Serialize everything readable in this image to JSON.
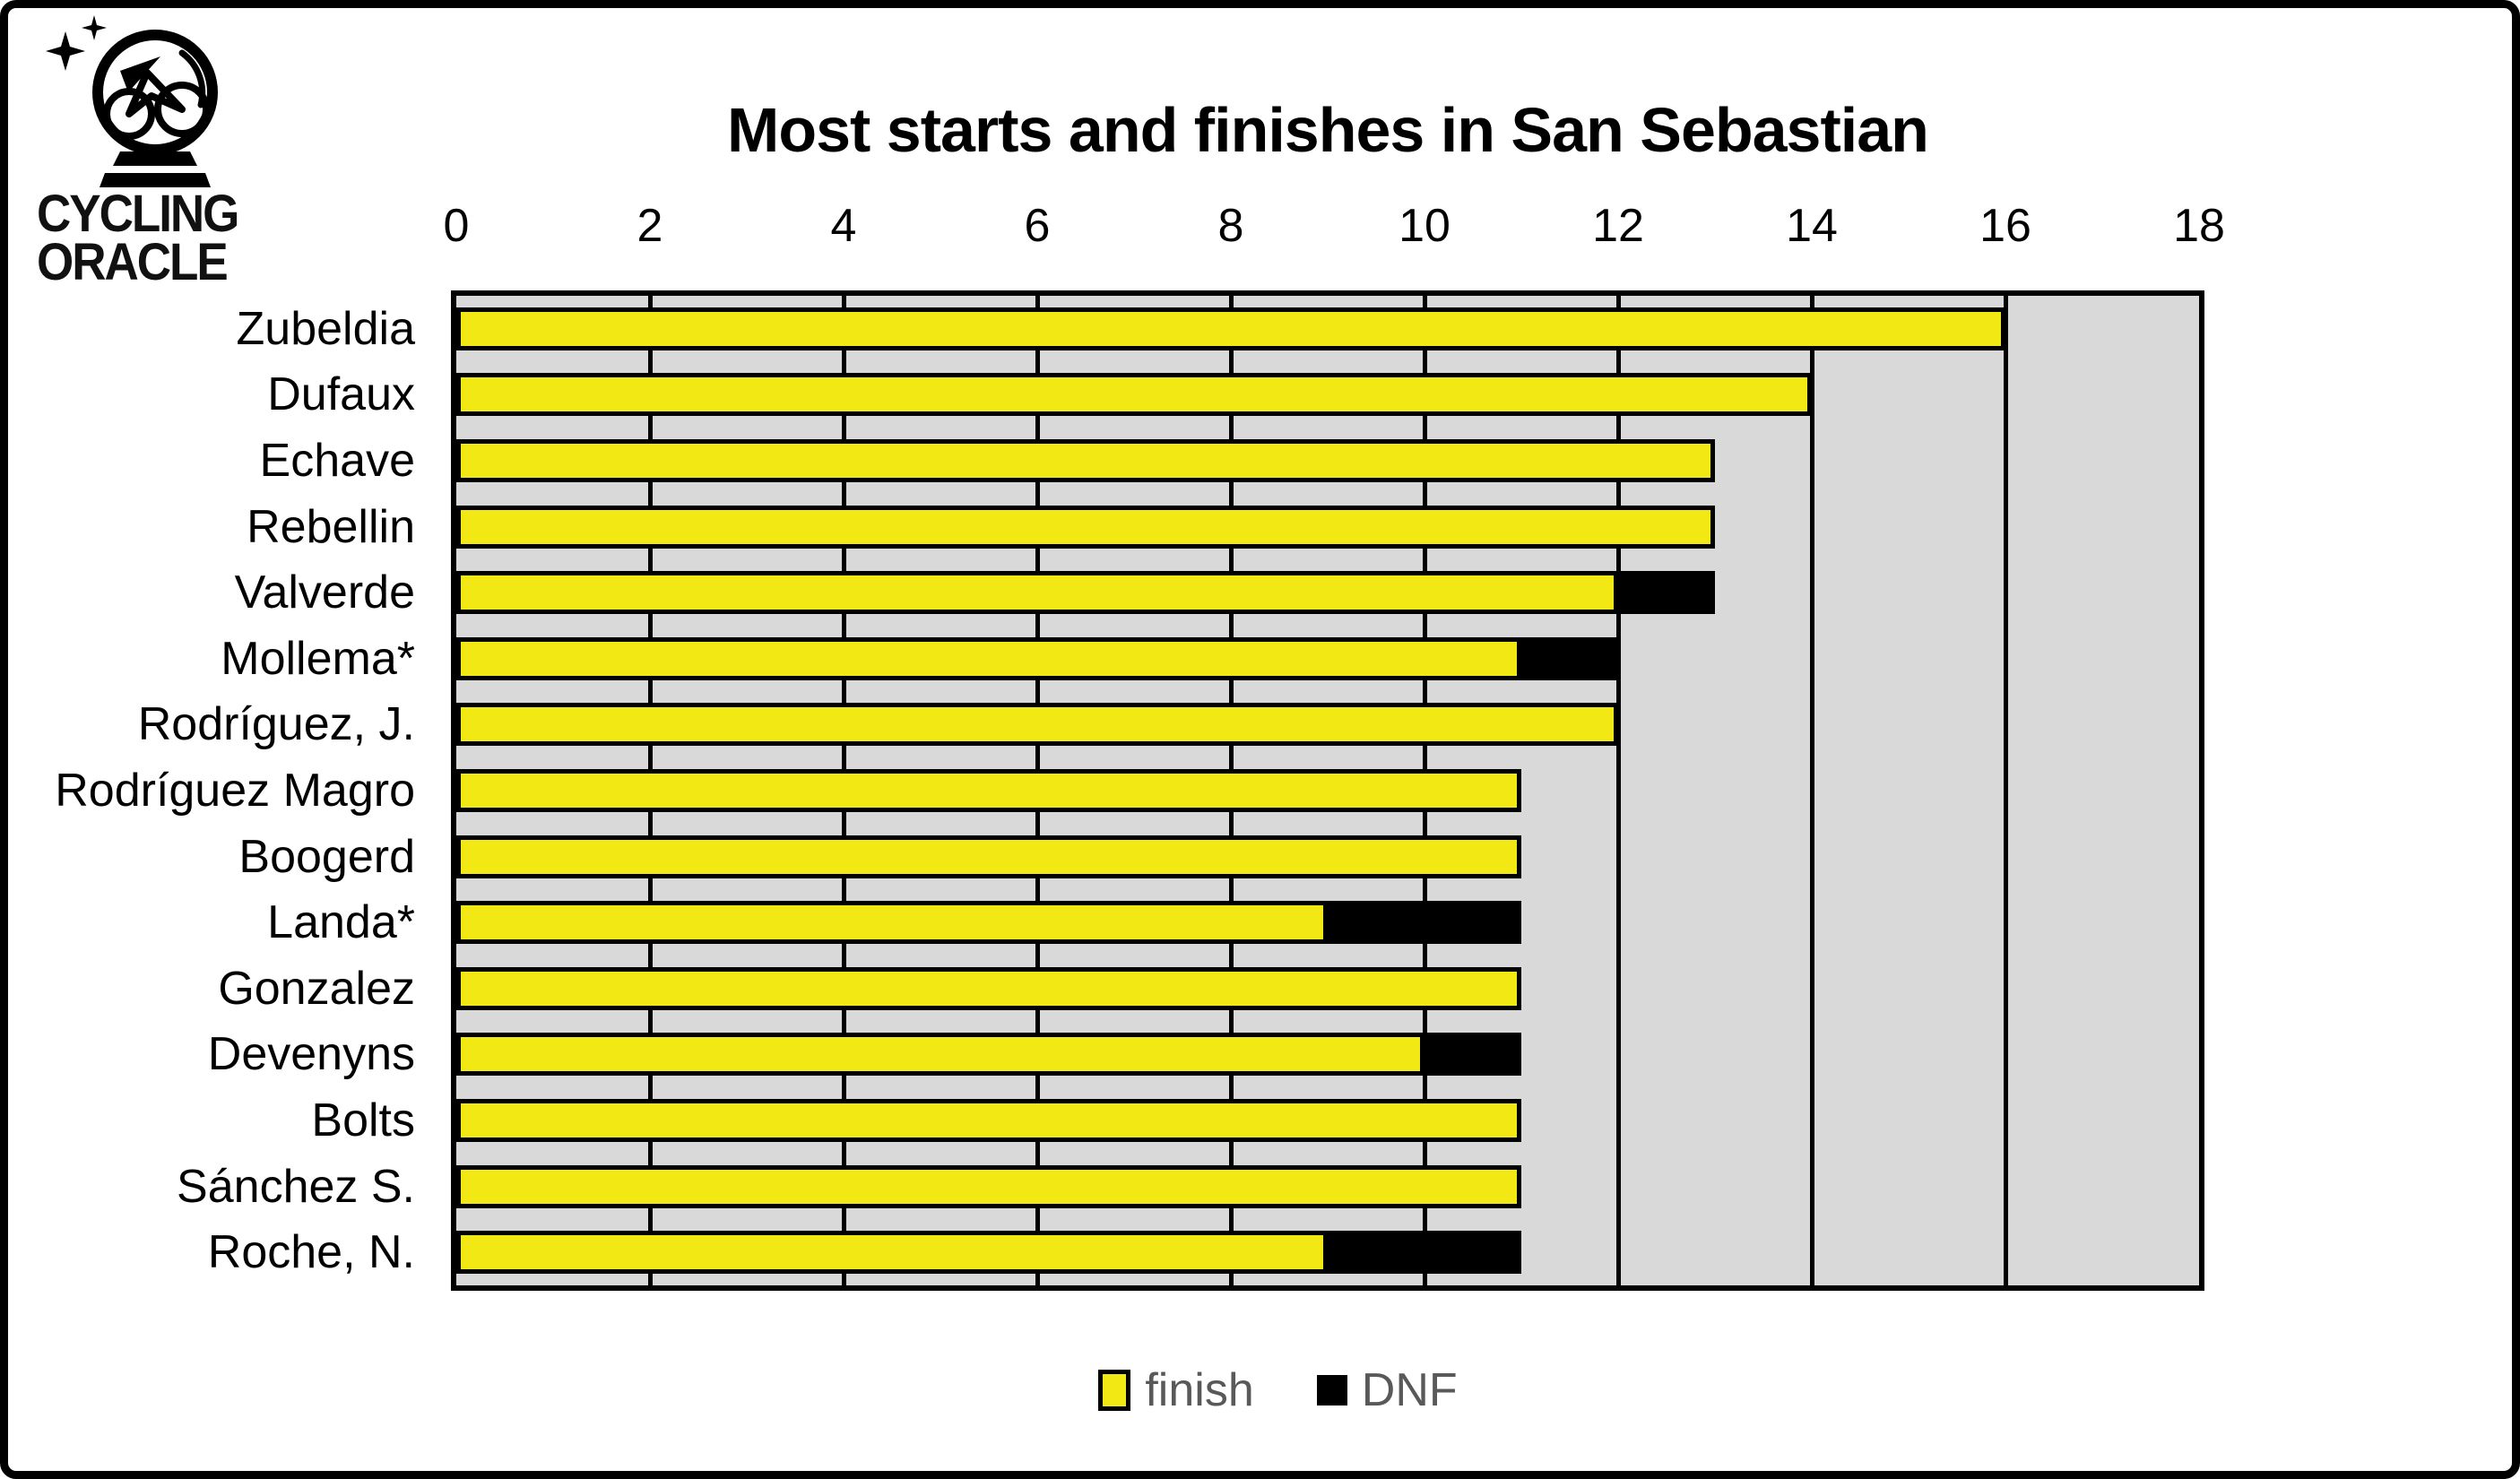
{
  "logo": {
    "brand_line1": "CYCLING",
    "brand_line2": "ORACLE"
  },
  "colors": {
    "finish": "#F2E813",
    "dnf": "#000000",
    "plot_background": "#D9D9D9",
    "gridline": "#000000",
    "legend_text": "#595959",
    "border": "#000000"
  },
  "chart_data": {
    "type": "bar",
    "orientation": "horizontal",
    "stacked": true,
    "title": "Most starts and finishes in San Sebastian",
    "categories": [
      "Zubeldia",
      "Dufaux",
      "Echave",
      "Rebellin",
      "Valverde",
      "Mollema*",
      "Rodríguez, J.",
      "Rodríguez Magro",
      "Boogerd",
      "Landa*",
      "Gonzalez",
      "Devenyns",
      "Bolts",
      "Sánchez S.",
      "Roche, N."
    ],
    "series": [
      {
        "name": "finish",
        "color": "#F2E813",
        "values": [
          16,
          14,
          13,
          13,
          12,
          11,
          12,
          11,
          11,
          9,
          11,
          10,
          11,
          11,
          9
        ]
      },
      {
        "name": "DNF",
        "color": "#000000",
        "values": [
          0,
          0,
          0,
          0,
          1,
          1,
          0,
          0,
          0,
          2,
          0,
          1,
          0,
          0,
          2
        ]
      }
    ],
    "x_axis": {
      "position": "top",
      "min": 0,
      "max": 18,
      "tick_step": 2,
      "ticks": [
        0,
        2,
        4,
        6,
        8,
        10,
        12,
        14,
        16,
        18
      ]
    },
    "grid": true,
    "plot_background": "#D9D9D9",
    "legend": {
      "position": "bottom",
      "entries": [
        "finish",
        "DNF"
      ]
    }
  }
}
